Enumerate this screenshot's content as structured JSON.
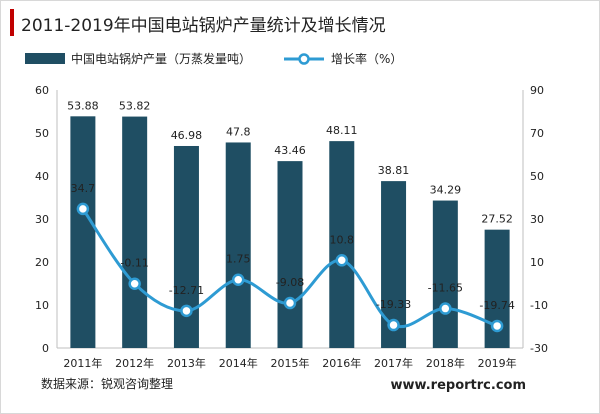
{
  "chart_data": {
    "type": "bar",
    "title": "2011-2019年中国电站锅炉产量统计及增长情况",
    "categories": [
      "2011年",
      "2012年",
      "2013年",
      "2014年",
      "2015年",
      "2016年",
      "2017年",
      "2018年",
      "2019年"
    ],
    "series": [
      {
        "name": "中国电站锅炉产量（万蒸发量吨）",
        "type": "bar",
        "axis": "left",
        "values": [
          53.88,
          53.82,
          46.98,
          47.8,
          43.46,
          48.11,
          38.81,
          34.29,
          27.52
        ],
        "labels": [
          "53.88",
          "53.82",
          "46.98",
          "47.8",
          "43.46",
          "48.11",
          "38.81",
          "34.29",
          "27.52"
        ]
      },
      {
        "name": "增长率（%）",
        "type": "line",
        "axis": "right",
        "values": [
          34.7,
          -0.11,
          -12.71,
          1.75,
          -9.08,
          10.8,
          -19.33,
          -11.65,
          -19.74
        ],
        "labels": [
          "34.7",
          "-0.11",
          "-12.71",
          "1.75",
          "-9.08",
          "10.8",
          "-19.33",
          "-11.65",
          "-19.74"
        ]
      }
    ],
    "ylim_left": [
      0,
      60
    ],
    "yticks_left": [
      "0",
      "10",
      "20",
      "30",
      "40",
      "50",
      "60"
    ],
    "ylim_right": [
      -30,
      90
    ],
    "yticks_right": [
      "-30",
      "-10",
      "10",
      "30",
      "50",
      "70",
      "90"
    ],
    "grid": false,
    "legend_position": "top-left",
    "source": "数据来源：锐观咨询整理",
    "watermark": "www.reportrc.com",
    "colors": {
      "bar": "#1f4e63",
      "line": "#2e9bd3",
      "accent": "#c00000",
      "text": "#222222"
    }
  }
}
